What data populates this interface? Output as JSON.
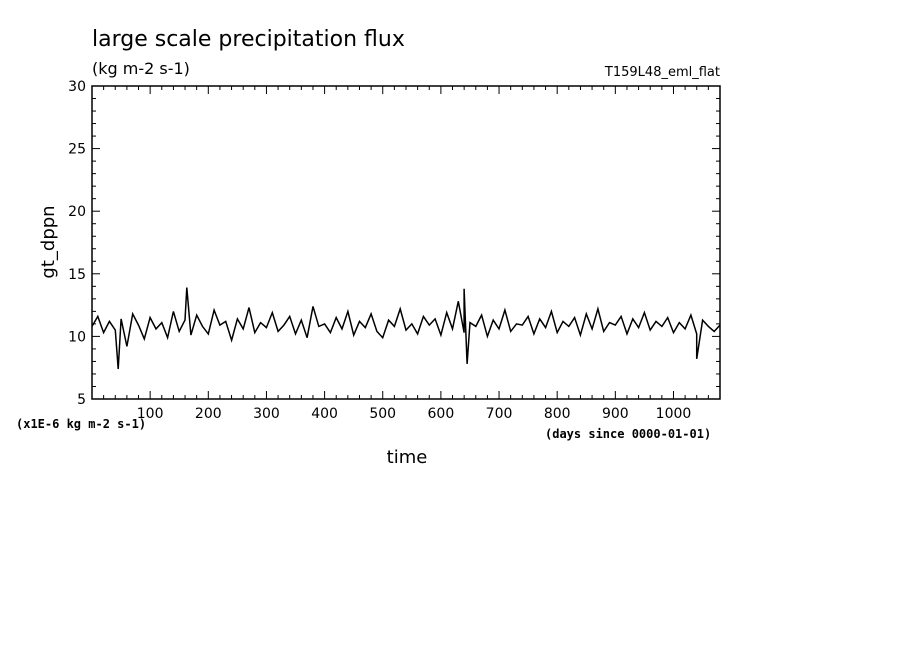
{
  "chart_data": {
    "type": "line",
    "title": "large scale precipitation flux",
    "subtitle": "(kg m-2 s-1)",
    "run_label": "T159L48_eml_flat",
    "xlabel": "time",
    "ylabel": "gt_dppn",
    "y_scale_note": "(x1E-6 kg m-2 s-1)",
    "x_units_note": "(days since 0000-01-01)",
    "xlim": [
      0,
      1080
    ],
    "ylim": [
      5,
      30
    ],
    "x_ticks": [
      100,
      200,
      300,
      400,
      500,
      600,
      700,
      800,
      900,
      1000
    ],
    "y_ticks": [
      5,
      10,
      15,
      20,
      25,
      30
    ],
    "x_tick_labels": [
      "100",
      "200",
      "300",
      "400",
      "500",
      "600",
      "700",
      "800",
      "900",
      "1000"
    ],
    "y_tick_labels": [
      "5",
      "10",
      "15",
      "20",
      "25",
      "30"
    ],
    "grid": false,
    "series": [
      {
        "color": "#000000",
        "x": [
          0,
          10,
          20,
          30,
          40,
          50,
          60,
          70,
          80,
          90,
          100,
          110,
          120,
          130,
          140,
          150,
          160,
          170,
          180,
          190,
          200,
          210,
          220,
          230,
          240,
          250,
          260,
          270,
          280,
          290,
          300,
          310,
          320,
          330,
          340,
          350,
          360,
          370,
          380,
          390,
          400,
          410,
          420,
          430,
          440,
          450,
          460,
          470,
          480,
          490,
          500,
          510,
          520,
          530,
          540,
          550,
          560,
          570,
          580,
          590,
          600,
          610,
          620,
          630,
          640,
          650,
          660,
          670,
          680,
          690,
          700,
          710,
          720,
          730,
          740,
          750,
          760,
          770,
          780,
          790,
          800,
          810,
          820,
          830,
          840,
          850,
          860,
          870,
          880,
          890,
          900,
          910,
          920,
          930,
          940,
          950,
          960,
          970,
          980,
          990,
          1000,
          1010,
          1020,
          1030,
          1040,
          1050,
          1060,
          1070,
          1080
        ],
        "values": [
          10.8,
          11.6,
          10.3,
          11.2,
          10.5,
          11.4,
          9.2,
          11.8,
          10.9,
          9.8,
          11.5,
          10.6,
          11.1,
          9.9,
          12.0,
          10.4,
          11.3,
          10.1,
          11.7,
          10.8,
          10.2,
          12.1,
          10.9,
          11.2,
          9.7,
          11.4,
          10.6,
          12.3,
          10.3,
          11.1,
          10.7,
          11.9,
          10.4,
          10.9,
          11.6,
          10.2,
          11.3,
          9.9,
          12.4,
          10.8,
          11.0,
          10.3,
          11.5,
          10.6,
          12.0,
          10.1,
          11.2,
          10.7,
          11.8,
          10.4,
          9.9,
          11.3,
          10.8,
          12.2,
          10.5,
          11.0,
          10.2,
          11.6,
          10.9,
          11.4,
          10.1,
          11.9,
          10.6,
          12.8,
          10.3,
          11.1,
          10.8,
          11.7,
          10.0,
          11.3,
          10.6,
          12.1,
          10.4,
          11.0,
          10.9,
          11.6,
          10.2,
          11.4,
          10.7,
          12.0,
          10.3,
          11.2,
          10.8,
          11.5,
          10.1,
          11.8,
          10.6,
          12.2,
          10.4,
          11.1,
          10.9,
          11.6,
          10.2,
          11.4,
          10.7,
          11.9,
          10.5,
          11.2,
          10.8,
          11.5,
          10.3,
          11.1,
          10.6,
          11.7,
          10.2,
          11.3,
          10.8,
          10.4,
          10.9
        ],
        "highlights": [
          {
            "x": 45,
            "y": 7.4
          },
          {
            "x": 163,
            "y": 13.9
          },
          {
            "x": 640,
            "y": 13.8
          },
          {
            "x": 645,
            "y": 7.8
          },
          {
            "x": 1040,
            "y": 8.2
          }
        ]
      }
    ]
  }
}
